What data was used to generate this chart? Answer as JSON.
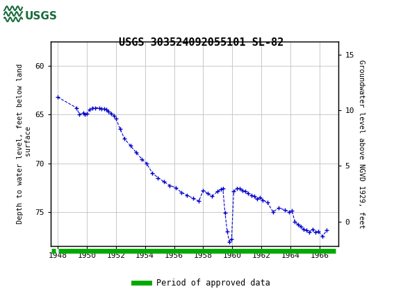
{
  "title": "USGS 303524092055101 SL-82",
  "title_fontsize": 11,
  "ylabel_left": "Depth to water level, feet below land\n surface",
  "ylabel_right": "Groundwater level above NGVD 1929, feet",
  "ylim_left": [
    78.5,
    57.5
  ],
  "ylim_right": [
    -2.2,
    16.2
  ],
  "xlim": [
    1947.5,
    1967.3
  ],
  "xticks": [
    1948,
    1950,
    1952,
    1954,
    1956,
    1958,
    1960,
    1962,
    1964,
    1966
  ],
  "yticks_left": [
    60,
    65,
    70,
    75
  ],
  "yticks_right": [
    15,
    10,
    5,
    0
  ],
  "header_color": "#1a6b3c",
  "data_color": "#0000cc",
  "approved_color": "#00aa00",
  "background_color": "#ffffff",
  "grid_color": "#c0c0c0",
  "data_x": [
    1948.0,
    1949.3,
    1949.5,
    1949.75,
    1949.85,
    1950.0,
    1950.2,
    1950.4,
    1950.6,
    1950.85,
    1951.0,
    1951.2,
    1951.35,
    1951.5,
    1951.7,
    1951.85,
    1952.0,
    1952.3,
    1952.6,
    1953.0,
    1953.4,
    1953.8,
    1954.1,
    1954.5,
    1954.9,
    1955.3,
    1955.7,
    1956.1,
    1956.5,
    1956.9,
    1957.3,
    1957.7,
    1958.0,
    1958.3,
    1958.6,
    1959.0,
    1959.2,
    1959.35,
    1959.5,
    1959.65,
    1959.8,
    1959.95,
    1960.1,
    1960.3,
    1960.5,
    1960.7,
    1960.9,
    1961.1,
    1961.3,
    1961.5,
    1961.7,
    1961.9,
    1962.1,
    1962.4,
    1962.8,
    1963.2,
    1963.6,
    1963.9,
    1964.1,
    1964.3,
    1964.5,
    1964.7,
    1964.9,
    1965.1,
    1965.3,
    1965.5,
    1965.7,
    1965.9,
    1966.2,
    1966.5
  ],
  "data_y": [
    63.2,
    64.3,
    65.0,
    64.8,
    65.0,
    64.9,
    64.5,
    64.3,
    64.3,
    64.3,
    64.4,
    64.4,
    64.5,
    64.7,
    64.9,
    65.1,
    65.4,
    66.5,
    67.5,
    68.2,
    68.9,
    69.6,
    70.0,
    71.0,
    71.5,
    71.9,
    72.3,
    72.5,
    73.0,
    73.3,
    73.6,
    73.9,
    72.8,
    73.1,
    73.4,
    72.9,
    72.7,
    72.6,
    75.1,
    77.0,
    78.1,
    77.8,
    72.9,
    72.6,
    72.6,
    72.8,
    72.9,
    73.1,
    73.3,
    73.4,
    73.7,
    73.5,
    73.8,
    74.0,
    75.0,
    74.6,
    74.8,
    75.0,
    74.9,
    76.0,
    76.3,
    76.5,
    76.8,
    76.9,
    77.1,
    76.8,
    77.1,
    77.0,
    77.5,
    76.9
  ],
  "approved_bar_x_start": 1948.07,
  "approved_bar_x_end": 1967.1,
  "approved_small_x_start": 1947.55,
  "approved_small_x_end": 1947.85,
  "legend_label": "Period of approved data"
}
